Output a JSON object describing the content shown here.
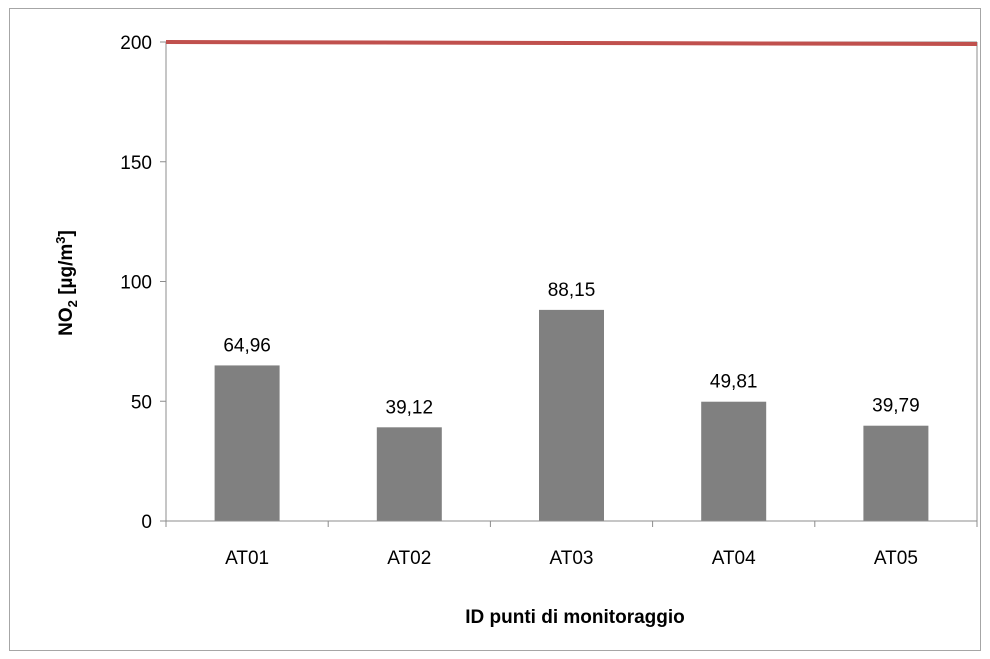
{
  "chart_data": {
    "type": "bar",
    "categories": [
      "AT01",
      "AT02",
      "AT03",
      "AT04",
      "AT05"
    ],
    "values": [
      64.96,
      39.12,
      88.15,
      49.81,
      39.79
    ],
    "data_labels": [
      "64,96",
      "39,12",
      "88,15",
      "49,81",
      "39,79"
    ],
    "ylim": [
      0,
      200
    ],
    "yticks": [
      0,
      50,
      100,
      150,
      200
    ],
    "xlabel": "ID punti di monitoraggio",
    "ylabel": {
      "prefix": "NO",
      "prefix_sub": "2",
      "unit_open": " [µg/m",
      "unit_sup": "3",
      "unit_close": "]"
    },
    "reference_line": {
      "value": 200
    },
    "bar_color": "#808080",
    "reference_line_color": "#c0504d",
    "grid": false,
    "legend": "none"
  }
}
